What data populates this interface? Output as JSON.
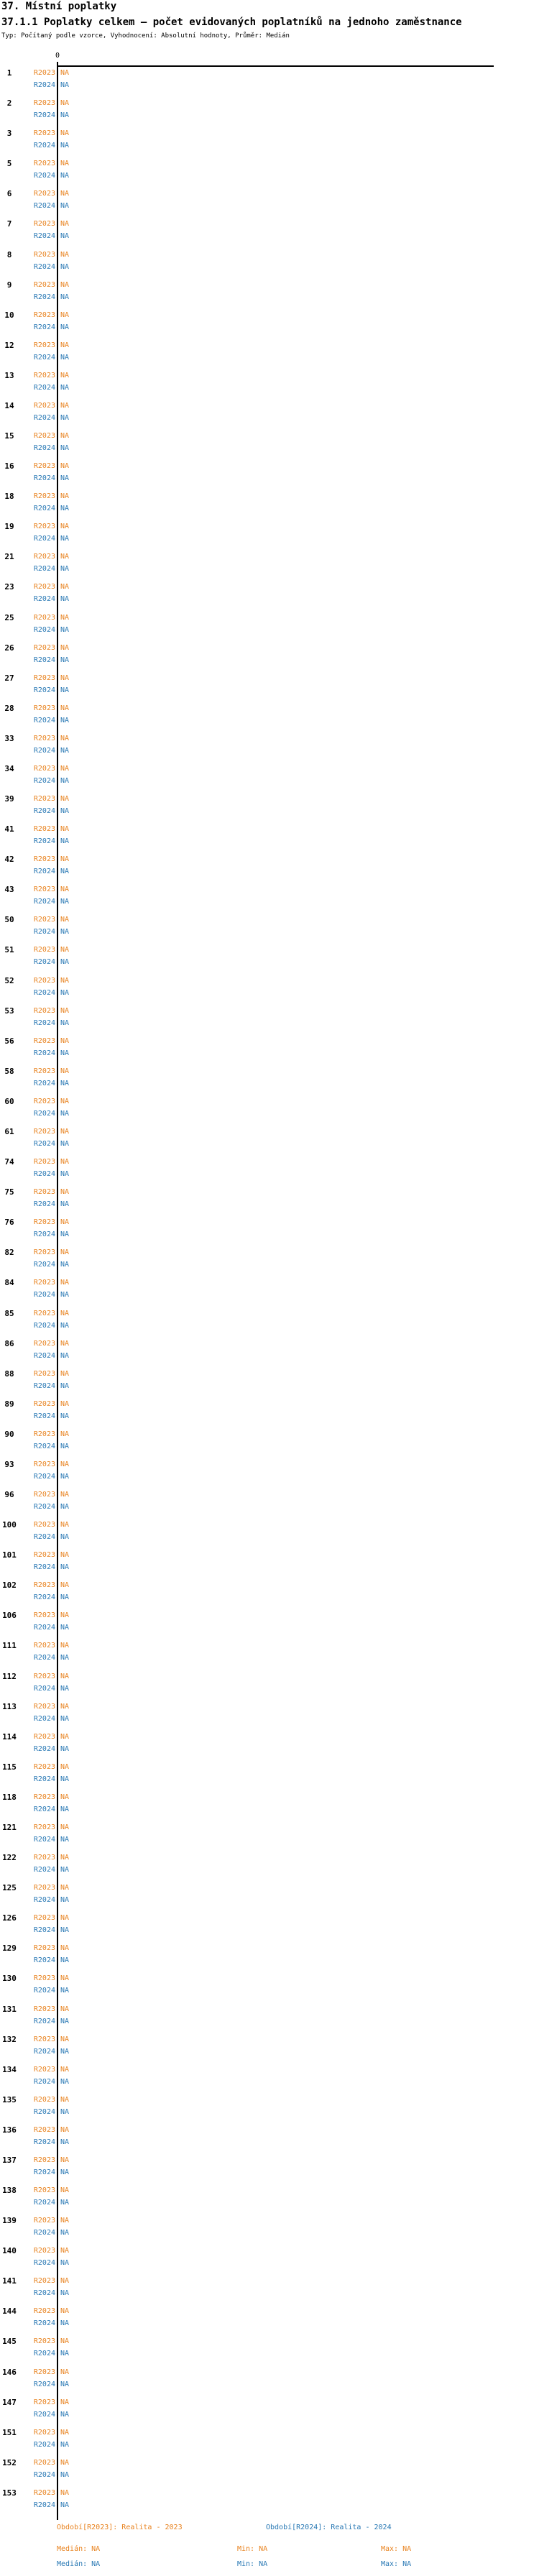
{
  "header": {
    "title": "37. Místní poplatky",
    "subtitle": "37.1.1 Poplatky celkem — počet evidovaných poplatníků na jednoho zaměstnance",
    "meta": "Typ: Počítaný podle vzorce, Vyhodnocení: Absolutní hodnoty, Průměr: Medián"
  },
  "chart_data": {
    "type": "bar",
    "orientation": "horizontal",
    "title": "37.1.1 Poplatky celkem — počet evidovaných poplatníků na jednoho zaměstnance",
    "x_axis": {
      "ticks": [
        0
      ],
      "tick_labels": [
        "0"
      ]
    },
    "categories": [
      1,
      2,
      3,
      5,
      6,
      7,
      8,
      9,
      10,
      12,
      13,
      14,
      15,
      16,
      18,
      19,
      21,
      23,
      25,
      26,
      27,
      28,
      33,
      34,
      39,
      41,
      42,
      43,
      50,
      51,
      52,
      53,
      56,
      58,
      60,
      61,
      74,
      75,
      76,
      82,
      84,
      85,
      86,
      88,
      89,
      90,
      93,
      96,
      100,
      101,
      102,
      106,
      111,
      112,
      113,
      114,
      115,
      118,
      121,
      122,
      125,
      126,
      129,
      130,
      131,
      132,
      134,
      135,
      136,
      137,
      138,
      139,
      140,
      141,
      144,
      145,
      146,
      147,
      151,
      152,
      153
    ],
    "series": [
      {
        "name": "R2023",
        "color": "#E8821E",
        "values": [
          "NA",
          "NA",
          "NA",
          "NA",
          "NA",
          "NA",
          "NA",
          "NA",
          "NA",
          "NA",
          "NA",
          "NA",
          "NA",
          "NA",
          "NA",
          "NA",
          "NA",
          "NA",
          "NA",
          "NA",
          "NA",
          "NA",
          "NA",
          "NA",
          "NA",
          "NA",
          "NA",
          "NA",
          "NA",
          "NA",
          "NA",
          "NA",
          "NA",
          "NA",
          "NA",
          "NA",
          "NA",
          "NA",
          "NA",
          "NA",
          "NA",
          "NA",
          "NA",
          "NA",
          "NA",
          "NA",
          "NA",
          "NA",
          "NA",
          "NA",
          "NA",
          "NA",
          "NA",
          "NA",
          "NA",
          "NA",
          "NA",
          "NA",
          "NA",
          "NA",
          "NA",
          "NA",
          "NA",
          "NA",
          "NA",
          "NA",
          "NA",
          "NA",
          "NA",
          "NA",
          "NA",
          "NA",
          "NA",
          "NA",
          "NA",
          "NA",
          "NA",
          "NA",
          "NA",
          "NA",
          "NA"
        ]
      },
      {
        "name": "R2024",
        "color": "#2878B4",
        "values": [
          "NA",
          "NA",
          "NA",
          "NA",
          "NA",
          "NA",
          "NA",
          "NA",
          "NA",
          "NA",
          "NA",
          "NA",
          "NA",
          "NA",
          "NA",
          "NA",
          "NA",
          "NA",
          "NA",
          "NA",
          "NA",
          "NA",
          "NA",
          "NA",
          "NA",
          "NA",
          "NA",
          "NA",
          "NA",
          "NA",
          "NA",
          "NA",
          "NA",
          "NA",
          "NA",
          "NA",
          "NA",
          "NA",
          "NA",
          "NA",
          "NA",
          "NA",
          "NA",
          "NA",
          "NA",
          "NA",
          "NA",
          "NA",
          "NA",
          "NA",
          "NA",
          "NA",
          "NA",
          "NA",
          "NA",
          "NA",
          "NA",
          "NA",
          "NA",
          "NA",
          "NA",
          "NA",
          "NA",
          "NA",
          "NA",
          "NA",
          "NA",
          "NA",
          "NA",
          "NA",
          "NA",
          "NA",
          "NA",
          "NA",
          "NA",
          "NA",
          "NA",
          "NA",
          "NA",
          "NA",
          "NA"
        ]
      }
    ],
    "legend_position": "bottom",
    "grid": false
  },
  "legend": {
    "r2023": {
      "title": "Období[R2023]: Realita - 2023",
      "median": "Medián: NA",
      "min": "Min: NA",
      "max": "Max: NA",
      "color": "#E8821E"
    },
    "r2024": {
      "title": "Období[R2024]: Realita - 2024",
      "median": "Medián: NA",
      "min": "Min: NA",
      "max": "Max: NA",
      "color": "#2878B4"
    }
  }
}
